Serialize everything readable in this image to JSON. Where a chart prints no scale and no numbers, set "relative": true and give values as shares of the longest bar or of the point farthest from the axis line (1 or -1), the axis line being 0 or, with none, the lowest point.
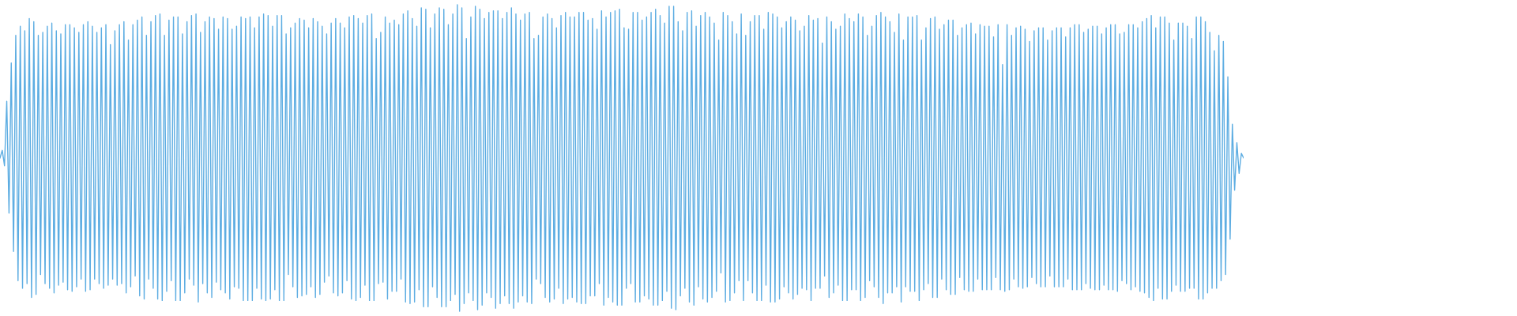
{
  "chart_data": {
    "type": "line",
    "relative": true,
    "categories": [
      null,
      null,
      null,
      null,
      null,
      null,
      null,
      null,
      null,
      null,
      null,
      null,
      null,
      null,
      null,
      null,
      null,
      null,
      null,
      null,
      null,
      null,
      null,
      null,
      null,
      null,
      null,
      null,
      null,
      null,
      null,
      null,
      null,
      null,
      null,
      null,
      null,
      null,
      null,
      null,
      null,
      null,
      null,
      null,
      null,
      null,
      null,
      null,
      null,
      null,
      null,
      null,
      null,
      null,
      null,
      null,
      null,
      null,
      null,
      null,
      null,
      null,
      null,
      null,
      null,
      null,
      null,
      null,
      null,
      null,
      null,
      null,
      null,
      null,
      null,
      null,
      null,
      null,
      null,
      null,
      null,
      null,
      null,
      null,
      null,
      null,
      null,
      null,
      null,
      null,
      null,
      null,
      null,
      null,
      null,
      null,
      null,
      null,
      null,
      null,
      null,
      null,
      null,
      null,
      null,
      null,
      null,
      null,
      null,
      null,
      null,
      null,
      null,
      null,
      null,
      null,
      null,
      null,
      null,
      null,
      null,
      null,
      null,
      null,
      null,
      null,
      null,
      null,
      null,
      null,
      null,
      null,
      null,
      null,
      null,
      null,
      null,
      null,
      null,
      null,
      null,
      null,
      null,
      null,
      null,
      null,
      null,
      null,
      null,
      null,
      null,
      null,
      null,
      null,
      null,
      null,
      null,
      null,
      null,
      null,
      null,
      null,
      null,
      null,
      null,
      null,
      null,
      null,
      null,
      null,
      null,
      null,
      null,
      null,
      null,
      null,
      null,
      null,
      null,
      null,
      null,
      null,
      null,
      null,
      null,
      null,
      null,
      null,
      null,
      null,
      null,
      null,
      null,
      null,
      null,
      null,
      null,
      null,
      null,
      null,
      null,
      null,
      null,
      null,
      null,
      null,
      null,
      null,
      null,
      null,
      null,
      null,
      null,
      null,
      null,
      null,
      null,
      null,
      null,
      null,
      null,
      null,
      null,
      null,
      null,
      null,
      null,
      null,
      null,
      null,
      null,
      null,
      null,
      null,
      null,
      null,
      null,
      null,
      null,
      null,
      null,
      null,
      null,
      null,
      null,
      null,
      null,
      null,
      null,
      null,
      null,
      null,
      null,
      null,
      null,
      null,
      null,
      null,
      null,
      null,
      null,
      null,
      null,
      null,
      null,
      null,
      null,
      null,
      null,
      null,
      null,
      null,
      null,
      null,
      null,
      null,
      null,
      null,
      null,
      null,
      null,
      null,
      null,
      null,
      null,
      null,
      null,
      null,
      null,
      null,
      null,
      null,
      null,
      null,
      null,
      null,
      null,
      null,
      null,
      null,
      null,
      null,
      null,
      null,
      null,
      null,
      null,
      null,
      null,
      null,
      null,
      null,
      null,
      null,
      null,
      null,
      null,
      null,
      null,
      null,
      null,
      null,
      null,
      null,
      null,
      null,
      null,
      null,
      null,
      null,
      null,
      null,
      null,
      null,
      null,
      null,
      null,
      null,
      null,
      null,
      null,
      null,
      null,
      null,
      null,
      null,
      null,
      null,
      null,
      null,
      null,
      null,
      null,
      null,
      null,
      null,
      null,
      null,
      null,
      null,
      null,
      null,
      null,
      null,
      null,
      null,
      null,
      null,
      null,
      null,
      null,
      null,
      null,
      null,
      null,
      null,
      null,
      null,
      null,
      null,
      null,
      null,
      null,
      null,
      null,
      null,
      null,
      null,
      null,
      null,
      null,
      null,
      null,
      null,
      null,
      null,
      null,
      null,
      null,
      null,
      null,
      null,
      null,
      null,
      null,
      null,
      null,
      null,
      null,
      null,
      null,
      null,
      null,
      null,
      null,
      null,
      null,
      null,
      null,
      null,
      null,
      null,
      null,
      null,
      null,
      null,
      null,
      null,
      null,
      null,
      null,
      null,
      null,
      null,
      null,
      null,
      null,
      null,
      null,
      null,
      null,
      null,
      null,
      null,
      null,
      null,
      null,
      null,
      null,
      null,
      null,
      null,
      null,
      null,
      null,
      null,
      null,
      null,
      null,
      null,
      null,
      null,
      null,
      null,
      null,
      null,
      null,
      null,
      null,
      null,
      null,
      null,
      null,
      null,
      null,
      null,
      null,
      null,
      null,
      null,
      null,
      null,
      null,
      null,
      null,
      null,
      null,
      null,
      null,
      null,
      null,
      null,
      null,
      null,
      null,
      null,
      null,
      null,
      null,
      null,
      null,
      null,
      null,
      null,
      null,
      null,
      null,
      null,
      null,
      null,
      null,
      null,
      null,
      null,
      null,
      null,
      null,
      null,
      null,
      null,
      null,
      null,
      null,
      null,
      null,
      null,
      null,
      null,
      null,
      null,
      null,
      null,
      null,
      null,
      null,
      null,
      null,
      null,
      null,
      null,
      null,
      null,
      null,
      null,
      null,
      null,
      null,
      null,
      null,
      null,
      null,
      null,
      null
    ],
    "series": [
      {
        "color": "#5dade2",
        "values": [
          0.5,
          0.525,
          0.475,
          0.685,
          0.32,
          0.81,
          0.195,
          0.9,
          0.1,
          0.93,
          0.075,
          0.915,
          0.09,
          0.955,
          0.045,
          0.945,
          0.055,
          0.9,
          0.12,
          0.91,
          0.09,
          0.93,
          0.075,
          0.94,
          0.06,
          0.915,
          0.085,
          0.905,
          0.095,
          0.935,
          0.07,
          0.935,
          0.065,
          0.925,
          0.08,
          0.91,
          0.105,
          0.935,
          0.065,
          0.945,
          0.07,
          0.93,
          0.105,
          0.91,
          0.09,
          0.925,
          0.075,
          0.935,
          0.085,
          0.87,
          0.105,
          0.915,
          0.085,
          0.935,
          0.09,
          0.945,
          0.06,
          0.885,
          0.08,
          0.935,
          0.115,
          0.95,
          0.05,
          0.96,
          0.04,
          0.9,
          0.105,
          0.945,
          0.075,
          0.965,
          0.04,
          0.97,
          0.035,
          0.9,
          0.065,
          0.95,
          0.1,
          0.96,
          0.035,
          0.96,
          0.035,
          0.905,
          0.06,
          0.945,
          0.105,
          0.965,
          0.085,
          0.97,
          0.03,
          0.91,
          0.09,
          0.945,
          0.06,
          0.96,
          0.045,
          0.955,
          0.095,
          0.92,
          0.07,
          0.96,
          0.06,
          0.955,
          0.04,
          0.92,
          0.08,
          0.93,
          0.075,
          0.96,
          0.035,
          0.955,
          0.035,
          0.96,
          0.035,
          0.925,
          0.075,
          0.96,
          0.04,
          0.97,
          0.035,
          0.965,
          0.04,
          0.93,
          0.07,
          0.965,
          0.035,
          0.965,
          0.035,
          0.905,
          0.12,
          0.925,
          0.08,
          0.94,
          0.045,
          0.955,
          0.05,
          0.95,
          0.055,
          0.925,
          0.08,
          0.955,
          0.045,
          0.945,
          0.055,
          0.93,
          0.095,
          0.905,
          0.115,
          0.94,
          0.06,
          0.955,
          0.05,
          0.94,
          0.06,
          0.925,
          0.1,
          0.96,
          0.04,
          0.965,
          0.035,
          0.955,
          0.045,
          0.94,
          0.085,
          0.965,
          0.035,
          0.97,
          0.035,
          0.89,
          0.09,
          0.91,
          0.095,
          0.96,
          0.04,
          0.94,
          0.065,
          0.95,
          0.065,
          0.935,
          0.105,
          0.97,
          0.03,
          0.98,
          0.025,
          0.955,
          0.03,
          0.93,
          0.07,
          0.99,
          0.015,
          0.985,
          0.015,
          0.925,
          0.08,
          0.97,
          0.045,
          0.99,
          0.015,
          0.985,
          0.015,
          0.935,
          0.035,
          0.97,
          0.055,
          1,
          0,
          0.99,
          0.025,
          0.89,
          0.06,
          0.96,
          0.035,
          0.995,
          0.005,
          0.985,
          0.02,
          0.955,
          0.06,
          0.975,
          0.045,
          0.98,
          0.01,
          0.98,
          0.025,
          0.955,
          0.05,
          0.975,
          0.025,
          0.99,
          0.01,
          0.97,
          0.03,
          0.95,
          0.05,
          0.97,
          0.03,
          0.975,
          0.025,
          0.89,
          0.105,
          0.9,
          0.09,
          0.96,
          0.045,
          0.97,
          0.03,
          0.955,
          0.04,
          0.925,
          0.075,
          0.965,
          0.025,
          0.975,
          0.04,
          0.96,
          0.045,
          0.96,
          0.03,
          0.975,
          0.025,
          0.975,
          0.025,
          0.95,
          0.05,
          0.955,
          0.05,
          0.92,
          0.09,
          0.98,
          0.02,
          0.96,
          0.045,
          0.975,
          0.03,
          0.98,
          0.02,
          0.985,
          0.02,
          0.925,
          0.075,
          0.92,
          0.09,
          0.975,
          0.03,
          0.975,
          0.03,
          0.95,
          0.05,
          0.96,
          0.04,
          0.975,
          0.02,
          0.985,
          0.02,
          0.965,
          0.035,
          0.94,
          0.065,
          0.995,
          0.01,
          0.995,
          0.005,
          0.945,
          0.05,
          0.915,
          0.075,
          0.975,
          0.03,
          0.98,
          0.02,
          0.93,
          0.08,
          0.965,
          0.04,
          0.975,
          0.03,
          0.96,
          0.045,
          0.94,
          0.065,
          0.885,
          0.125,
          0.975,
          0.03,
          0.965,
          0.035,
          0.945,
          0.06,
          0.905,
          0.1,
          0.97,
          0.035,
          0.9,
          0.1,
          0.945,
          0.06,
          0.965,
          0.035,
          0.965,
          0.035,
          0.92,
          0.085,
          0.975,
          0.03,
          0.97,
          0.03,
          0.96,
          0.04,
          0.925,
          0.08,
          0.945,
          0.06,
          0.96,
          0.04,
          0.95,
          0.055,
          0.915,
          0.075,
          0.93,
          0.07,
          0.965,
          0.035,
          0.95,
          0.075,
          0.955,
          0.075,
          0.875,
          0.115,
          0.96,
          0.045,
          0.945,
          0.06,
          0.92,
          0.085,
          0.93,
          0.035,
          0.97,
          0.035,
          0.955,
          0.07,
          0.945,
          0.07,
          0.97,
          0.035,
          0.96,
          0.045,
          0.9,
          0.1,
          0.93,
          0.08,
          0.965,
          0.045,
          0.975,
          0.025,
          0.96,
          0.06,
          0.945,
          0.06,
          0.91,
          0.08,
          0.97,
          0.03,
          0.885,
          0.08,
          0.96,
          0.065,
          0.96,
          0.065,
          0.965,
          0.035,
          0.885,
          0.07,
          0.925,
          0.09,
          0.955,
          0.045,
          0.96,
          0.045,
          0.92,
          0.105,
          0.935,
          0.07,
          0.95,
          0.055,
          0.95,
          0.055,
          0.9,
          0.11,
          0.925,
          0.07,
          0.935,
          0.065,
          0.94,
          0.065,
          0.905,
          0.105,
          0.935,
          0.07,
          0.93,
          0.07,
          0.93,
          0.07,
          0.895,
          0.11,
          0.935,
          0.07,
          0.805,
          0.065,
          0.935,
          0.07,
          0.9,
          0.105,
          0.925,
          0.08,
          0.93,
          0.075,
          0.92,
          0.08,
          0.88,
          0.11,
          0.915,
          0.09,
          0.925,
          0.08,
          0.925,
          0.08,
          0.885,
          0.115,
          0.915,
          0.08,
          0.925,
          0.08,
          0.925,
          0.08,
          0.895,
          0.105,
          0.925,
          0.07,
          0.935,
          0.07,
          0.935,
          0.07,
          0.91,
          0.09,
          0.92,
          0.075,
          0.93,
          0.07,
          0.93,
          0.07,
          0.905,
          0.085,
          0.925,
          0.07,
          0.935,
          0.07,
          0.935,
          0.065,
          0.905,
          0.1,
          0.91,
          0.09,
          0.935,
          0.07,
          0.935,
          0.08,
          0.925,
          0.065,
          0.945,
          0.06,
          0.955,
          0.045,
          0.965,
          0.035,
          0.925,
          0.075,
          0.96,
          0.04,
          0.96,
          0.04,
          0.94,
          0.065,
          0.885,
          0.085,
          0.94,
          0.065,
          0.94,
          0.065,
          0.93,
          0.075,
          0.89,
          0.075,
          0.96,
          0.04,
          0.96,
          0.04,
          0.945,
          0.06,
          0.91,
          0.075,
          0.85,
          0.075,
          0.9,
          0.1,
          0.88,
          0.12,
          0.765,
          0.235,
          0.61,
          0.395,
          0.55,
          0.45,
          0.515,
          0.5
        ]
      }
    ]
  }
}
